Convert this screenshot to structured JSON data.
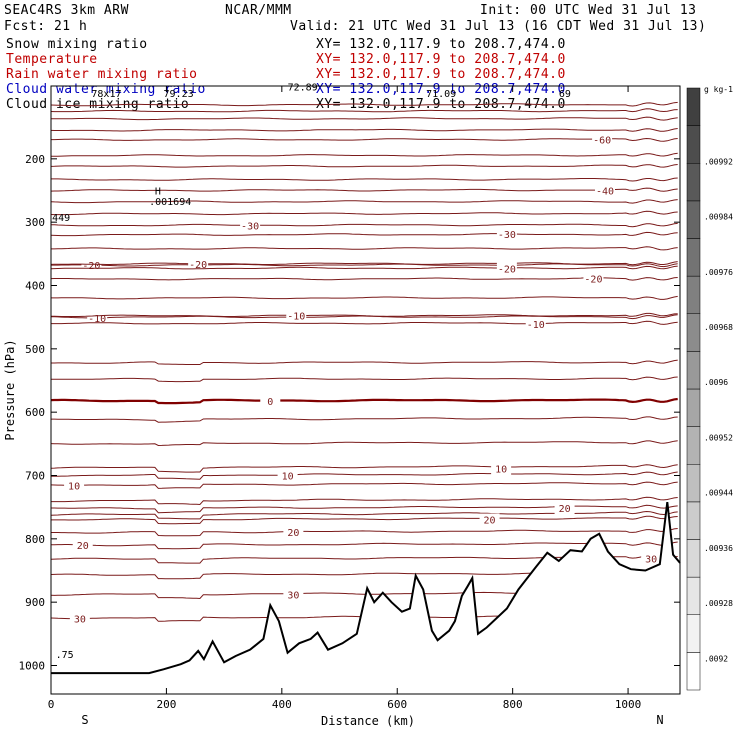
{
  "header": {
    "model": "SEAC4RS  3km ARW",
    "center": "NCAR/MMM",
    "init": "Init: 00 UTC Wed 31 Jul 13",
    "fcst": "Fcst:   21 h",
    "valid": "Valid: 21 UTC Wed 31 Jul 13 (16 CDT Wed 31 Jul 13)"
  },
  "legend": [
    {
      "label": "Snow mixing ratio",
      "xy": "XY= 132.0,117.9 to 208.7,474.0",
      "color": "#000000"
    },
    {
      "label": "Temperature",
      "xy": "XY= 132.0,117.9 to 208.7,474.0",
      "color": "#c00000"
    },
    {
      "label": "Rain water mixing ratio",
      "xy": "XY= 132.0,117.9 to 208.7,474.0",
      "color": "#c00000"
    },
    {
      "label": "Cloud water mixing ratio",
      "xy": "XY= 132.0,117.9 to 208.7,474.0",
      "color": "#0000c0"
    },
    {
      "label": "Cloud ice mixing ratio",
      "xy": "XY= 132.0,117.9 to 208.7,474.0",
      "color": "#000000"
    }
  ],
  "chart_data": {
    "type": "contour",
    "xlabel": "Distance (km)",
    "ylabel": "Pressure (hPa)",
    "xlim": [
      0,
      1090
    ],
    "ylim": [
      1045,
      85
    ],
    "x_ticks": [
      0,
      200,
      400,
      600,
      800,
      1000
    ],
    "y_ticks": [
      200,
      300,
      400,
      500,
      600,
      700,
      800,
      900,
      1000
    ],
    "left_end_label": "S",
    "right_end_label": "N",
    "colorbar": {
      "unit": "g kg-1",
      "ticks": [
        ".0092",
        ".00928",
        ".00936",
        ".00944",
        ".00952",
        ".0096",
        ".00968",
        ".00976",
        ".00984",
        ".00992"
      ],
      "colors": [
        "#ffffff",
        "#f2f2f2",
        "#e6e6e6",
        "#d9d9d9",
        "#cccccc",
        "#bfbfbf",
        "#b3b3b3",
        "#a6a6a6",
        "#999999",
        "#8c8c8c",
        "#808080",
        "#737373",
        "#666666",
        "#595959",
        "#4d4d4d",
        "#404040"
      ]
    },
    "temperature_contours": [
      {
        "p": 925,
        "label": "30",
        "label_x": 50
      },
      {
        "p": 888,
        "label": "30",
        "label_x": 420
      },
      {
        "p": 832,
        "label": "30",
        "label_x": 1040
      },
      {
        "p": 810,
        "label": "20",
        "label_x": 55
      },
      {
        "p": 790,
        "label": "20",
        "label_x": 420
      },
      {
        "p": 770,
        "label": "20",
        "label_x": 760
      },
      {
        "p": 752,
        "label": "20",
        "label_x": 890
      },
      {
        "p": 715,
        "label": "10",
        "label_x": 40
      },
      {
        "p": 700,
        "label": "10",
        "label_x": 410
      },
      {
        "p": 688,
        "label": "10",
        "label_x": 780
      },
      {
        "p": 582,
        "label": "0",
        "label_x": 380,
        "bold": true
      },
      {
        "p": 450,
        "label": "-10",
        "label_x": 80
      },
      {
        "p": 448,
        "label": "-10",
        "label_x": 425
      },
      {
        "p": 460,
        "label": "-10",
        "label_x": 840
      },
      {
        "p": 368,
        "label": "-20",
        "label_x": 70
      },
      {
        "p": 366,
        "label": "-20",
        "label_x": 255
      },
      {
        "p": 373,
        "label": "-20",
        "label_x": 790
      },
      {
        "p": 390,
        "label": "-20",
        "label_x": 940
      },
      {
        "p": 305,
        "label": "-30",
        "label_x": 345
      },
      {
        "p": 320,
        "label": "-30",
        "label_x": 790
      },
      {
        "p": 250,
        "label": "-40",
        "label_x": 960
      },
      {
        "p": 170,
        "label": "-60",
        "label_x": 955
      }
    ],
    "other_contours": [
      115,
      125,
      137,
      155,
      195,
      212,
      233,
      268,
      287,
      342,
      420,
      522,
      548,
      612,
      650,
      740,
      762,
      857
    ],
    "terrain": [
      [
        0,
        1012
      ],
      [
        170,
        1012
      ],
      [
        195,
        1006
      ],
      [
        225,
        998
      ],
      [
        240,
        992
      ],
      [
        255,
        977
      ],
      [
        265,
        990
      ],
      [
        280,
        962
      ],
      [
        300,
        995
      ],
      [
        320,
        985
      ],
      [
        345,
        975
      ],
      [
        368,
        958
      ],
      [
        380,
        905
      ],
      [
        395,
        930
      ],
      [
        410,
        980
      ],
      [
        430,
        965
      ],
      [
        450,
        958
      ],
      [
        462,
        948
      ],
      [
        480,
        975
      ],
      [
        505,
        965
      ],
      [
        530,
        950
      ],
      [
        548,
        878
      ],
      [
        560,
        900
      ],
      [
        575,
        885
      ],
      [
        590,
        900
      ],
      [
        608,
        915
      ],
      [
        622,
        910
      ],
      [
        632,
        858
      ],
      [
        645,
        880
      ],
      [
        660,
        945
      ],
      [
        670,
        960
      ],
      [
        690,
        945
      ],
      [
        700,
        930
      ],
      [
        712,
        890
      ],
      [
        722,
        875
      ],
      [
        730,
        862
      ],
      [
        740,
        950
      ],
      [
        755,
        940
      ],
      [
        790,
        910
      ],
      [
        810,
        880
      ],
      [
        840,
        845
      ],
      [
        860,
        822
      ],
      [
        880,
        835
      ],
      [
        900,
        818
      ],
      [
        920,
        820
      ],
      [
        935,
        800
      ],
      [
        950,
        792
      ],
      [
        965,
        820
      ],
      [
        985,
        840
      ],
      [
        1005,
        848
      ],
      [
        1030,
        850
      ],
      [
        1055,
        840
      ],
      [
        1068,
        742
      ],
      [
        1078,
        825
      ],
      [
        1090,
        838
      ]
    ],
    "annotations": [
      {
        "text": "H",
        "x": 180,
        "p": 256
      },
      {
        "text": ".001694",
        "x": 170,
        "p": 273
      },
      {
        "text": "449",
        "x": 2,
        "p": 298
      },
      {
        "text": "72.89",
        "x": 410,
        "p": 92
      },
      {
        "text": "78x17",
        "x": 70,
        "p": 102
      },
      {
        "text": "79.23",
        "x": 195,
        "p": 102
      },
      {
        "text": "71.09",
        "x": 650,
        "p": 102
      },
      {
        "text": "69",
        "x": 880,
        "p": 102
      },
      {
        "text": ".75",
        "x": 8,
        "p": 988
      }
    ]
  }
}
